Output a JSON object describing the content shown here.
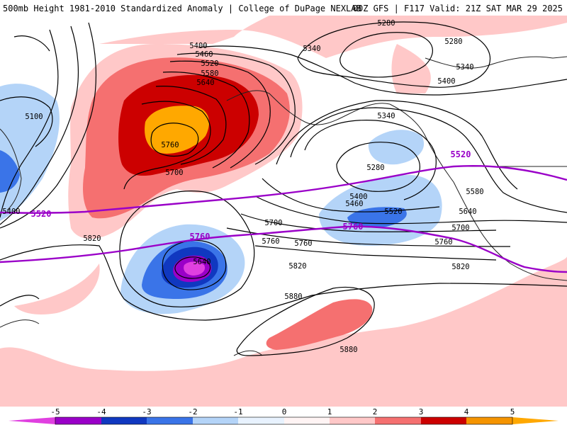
{
  "header": {
    "left_title": "500mb Height 1981-2010 Standardized Anomaly | College of DuPage NEXLAB",
    "right_title": "00Z GFS | F117 Valid: 21Z SAT MAR 29 2025"
  },
  "colors": {
    "neg5": "#e040e0",
    "neg4": "#9a00c8",
    "neg3": "#1038c0",
    "neg2": "#3a74e8",
    "neg1": "#b4d4f8",
    "neutral_low": "#e8f2fe",
    "neutral_high": "#fff4f4",
    "pos1": "#ffc8c8",
    "pos2": "#f57070",
    "pos3": "#cc0000",
    "pos4": "#f59400",
    "pos5": "#ffa800",
    "contour": "#000000",
    "highlight_contour": "#9a00c8",
    "coastline": "#222222"
  },
  "colorbar": {
    "ticks": [
      "-5",
      "-4",
      "-3",
      "-2",
      "-1",
      "0",
      "1",
      "2",
      "3",
      "4",
      "5"
    ]
  },
  "contour_labels": [
    "5280",
    "5280",
    "5340",
    "5400",
    "5340",
    "5400",
    "5460",
    "5520",
    "5580",
    "5640",
    "5100",
    "5760",
    "5340",
    "5280",
    "5700",
    "5400",
    "5460",
    "5520",
    "5580",
    "5640",
    "5700",
    "5400",
    "5760",
    "5700",
    "5820",
    "5760",
    "5760",
    "5640",
    "5820",
    "5820",
    "5880",
    "5880"
  ],
  "highlight_labels": [
    "5520",
    "5760",
    "5760",
    "5520"
  ]
}
